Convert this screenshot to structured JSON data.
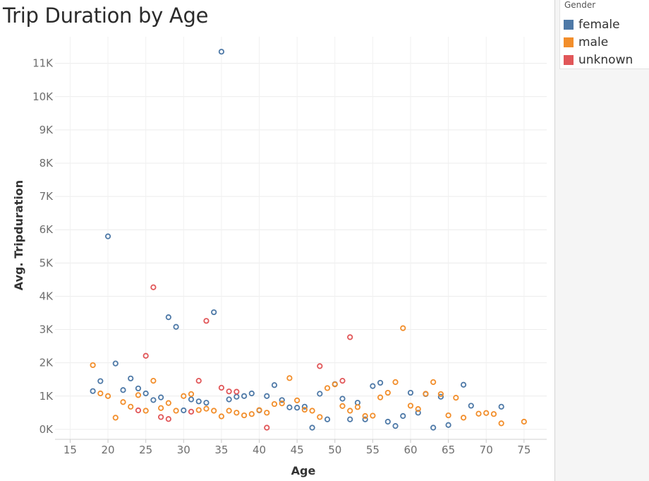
{
  "title": "Trip Duration by Age",
  "legend": {
    "title": "Gender",
    "items": [
      {
        "label": "female",
        "color": "#4e79a7"
      },
      {
        "label": "male",
        "color": "#f28e2b"
      },
      {
        "label": "unknown",
        "color": "#e15759"
      }
    ]
  },
  "chart_data": {
    "type": "scatter",
    "title": "Trip Duration by Age",
    "xlabel": "Age",
    "ylabel": "Avg. Tripduration",
    "xlim": [
      13,
      78
    ],
    "ylim": [
      -300,
      11800
    ],
    "x_ticks": [
      15,
      20,
      25,
      30,
      35,
      40,
      45,
      50,
      55,
      60,
      65,
      70,
      75
    ],
    "x_tick_labels": [
      "15",
      "20",
      "25",
      "30",
      "35",
      "40",
      "45",
      "50",
      "55",
      "60",
      "65",
      "70",
      "75"
    ],
    "y_ticks": [
      0,
      1000,
      2000,
      3000,
      4000,
      5000,
      6000,
      7000,
      8000,
      9000,
      10000,
      11000
    ],
    "y_tick_labels": [
      "0K",
      "1K",
      "2K",
      "3K",
      "4K",
      "5K",
      "6K",
      "7K",
      "8K",
      "9K",
      "10K",
      "11K"
    ],
    "grid": true,
    "legend_position": "top-right",
    "series": [
      {
        "name": "female",
        "color": "#4e79a7",
        "points": [
          [
            18,
            1150
          ],
          [
            19,
            1450
          ],
          [
            20,
            5800
          ],
          [
            21,
            1980
          ],
          [
            22,
            1180
          ],
          [
            23,
            1530
          ],
          [
            24,
            1230
          ],
          [
            25,
            1080
          ],
          [
            26,
            880
          ],
          [
            27,
            960
          ],
          [
            28,
            3370
          ],
          [
            29,
            3080
          ],
          [
            30,
            570
          ],
          [
            31,
            900
          ],
          [
            32,
            840
          ],
          [
            33,
            800
          ],
          [
            34,
            3520
          ],
          [
            35,
            11350
          ],
          [
            36,
            900
          ],
          [
            37,
            980
          ],
          [
            38,
            1000
          ],
          [
            39,
            1080
          ],
          [
            40,
            570
          ],
          [
            41,
            1000
          ],
          [
            42,
            1330
          ],
          [
            43,
            880
          ],
          [
            44,
            660
          ],
          [
            45,
            650
          ],
          [
            46,
            680
          ],
          [
            47,
            50
          ],
          [
            48,
            1070
          ],
          [
            49,
            300
          ],
          [
            50,
            1360
          ],
          [
            51,
            920
          ],
          [
            52,
            300
          ],
          [
            53,
            800
          ],
          [
            54,
            300
          ],
          [
            55,
            1300
          ],
          [
            56,
            1400
          ],
          [
            57,
            230
          ],
          [
            58,
            100
          ],
          [
            59,
            400
          ],
          [
            60,
            1100
          ],
          [
            61,
            500
          ],
          [
            62,
            1060
          ],
          [
            63,
            50
          ],
          [
            64,
            980
          ],
          [
            65,
            130
          ],
          [
            67,
            1340
          ],
          [
            68,
            710
          ],
          [
            72,
            680
          ]
        ]
      },
      {
        "name": "male",
        "color": "#f28e2b",
        "points": [
          [
            18,
            1930
          ],
          [
            19,
            1080
          ],
          [
            20,
            1000
          ],
          [
            21,
            350
          ],
          [
            22,
            820
          ],
          [
            23,
            680
          ],
          [
            24,
            1030
          ],
          [
            25,
            560
          ],
          [
            26,
            1460
          ],
          [
            27,
            640
          ],
          [
            28,
            790
          ],
          [
            29,
            560
          ],
          [
            30,
            1000
          ],
          [
            31,
            1060
          ],
          [
            32,
            580
          ],
          [
            33,
            620
          ],
          [
            34,
            560
          ],
          [
            35,
            390
          ],
          [
            36,
            560
          ],
          [
            37,
            500
          ],
          [
            38,
            420
          ],
          [
            39,
            460
          ],
          [
            40,
            580
          ],
          [
            41,
            500
          ],
          [
            42,
            760
          ],
          [
            43,
            780
          ],
          [
            44,
            1540
          ],
          [
            45,
            870
          ],
          [
            46,
            590
          ],
          [
            47,
            560
          ],
          [
            48,
            370
          ],
          [
            49,
            1240
          ],
          [
            50,
            1350
          ],
          [
            51,
            700
          ],
          [
            52,
            560
          ],
          [
            53,
            670
          ],
          [
            54,
            400
          ],
          [
            55,
            410
          ],
          [
            56,
            960
          ],
          [
            57,
            1100
          ],
          [
            58,
            1420
          ],
          [
            59,
            3040
          ],
          [
            60,
            710
          ],
          [
            61,
            610
          ],
          [
            62,
            1070
          ],
          [
            63,
            1420
          ],
          [
            64,
            1060
          ],
          [
            65,
            420
          ],
          [
            66,
            950
          ],
          [
            67,
            350
          ],
          [
            69,
            470
          ],
          [
            70,
            490
          ],
          [
            71,
            460
          ],
          [
            72,
            180
          ],
          [
            75,
            230
          ]
        ]
      },
      {
        "name": "unknown",
        "color": "#e15759",
        "points": [
          [
            24,
            570
          ],
          [
            25,
            2210
          ],
          [
            26,
            4270
          ],
          [
            27,
            370
          ],
          [
            28,
            310
          ],
          [
            31,
            530
          ],
          [
            32,
            1460
          ],
          [
            33,
            3260
          ],
          [
            35,
            1250
          ],
          [
            36,
            1140
          ],
          [
            37,
            1130
          ],
          [
            41,
            50
          ],
          [
            48,
            1900
          ],
          [
            51,
            1460
          ],
          [
            52,
            2770
          ]
        ]
      }
    ]
  }
}
